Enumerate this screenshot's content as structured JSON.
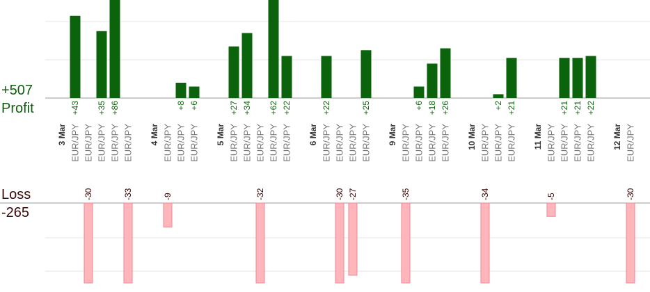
{
  "summary": {
    "profit_total": "+507",
    "profit_label": "Profit",
    "loss_label": "Loss",
    "loss_total": "-265"
  },
  "colors": {
    "profit_bar": "#0b640b",
    "profit_text": "#0b640b",
    "loss_bar": "#ffb6bb",
    "loss_border": "#e88a92",
    "loss_text": "#330000",
    "date_text": "#333333",
    "pair_text": "#777777"
  },
  "chart_data": {
    "type": "bar",
    "title": "",
    "xlabel": "",
    "ylabel": "",
    "grid": true,
    "columns": [
      {
        "label": "3 Mar",
        "kind": "date"
      },
      {
        "label": "EUR/JPY",
        "kind": "trade",
        "value": 43,
        "value_label": "+43"
      },
      {
        "label": "EUR/JPY",
        "kind": "trade",
        "value": -30,
        "value_label": "-30"
      },
      {
        "label": "EUR/JPY",
        "kind": "trade",
        "value": 35,
        "value_label": "+35"
      },
      {
        "label": "EUR/JPY",
        "kind": "trade",
        "value": 86,
        "value_label": "+86"
      },
      {
        "label": "EUR/JPY",
        "kind": "trade",
        "value": -33,
        "value_label": "-33"
      },
      {
        "label": "",
        "kind": "gap"
      },
      {
        "label": "4 Mar",
        "kind": "date"
      },
      {
        "label": "EUR/JPY",
        "kind": "trade",
        "value": -9,
        "value_label": "-9"
      },
      {
        "label": "EUR/JPY",
        "kind": "trade",
        "value": 8,
        "value_label": "+8"
      },
      {
        "label": "EUR/JPY",
        "kind": "trade",
        "value": 6,
        "value_label": "+6"
      },
      {
        "label": "",
        "kind": "gap"
      },
      {
        "label": "5 Mar",
        "kind": "date"
      },
      {
        "label": "EUR/JPY",
        "kind": "trade",
        "value": 27,
        "value_label": "+27"
      },
      {
        "label": "EUR/JPY",
        "kind": "trade",
        "value": 34,
        "value_label": "+34"
      },
      {
        "label": "EUR/JPY",
        "kind": "trade",
        "value": -32,
        "value_label": "-32"
      },
      {
        "label": "EUR/JPY",
        "kind": "trade",
        "value": 62,
        "value_label": "+62"
      },
      {
        "label": "EUR/JPY",
        "kind": "trade",
        "value": 22,
        "value_label": "+22"
      },
      {
        "label": "",
        "kind": "gap"
      },
      {
        "label": "6 Mar",
        "kind": "date"
      },
      {
        "label": "EUR/JPY",
        "kind": "trade",
        "value": 22,
        "value_label": "+22"
      },
      {
        "label": "EUR/JPY",
        "kind": "trade",
        "value": -30,
        "value_label": "-30"
      },
      {
        "label": "EUR/JPY",
        "kind": "trade",
        "value": -27,
        "value_label": "-27"
      },
      {
        "label": "EUR/JPY",
        "kind": "trade",
        "value": 25,
        "value_label": "+25"
      },
      {
        "label": "",
        "kind": "gap"
      },
      {
        "label": "9 Mar",
        "kind": "date"
      },
      {
        "label": "EUR/JPY",
        "kind": "trade",
        "value": -35,
        "value_label": "-35"
      },
      {
        "label": "EUR/JPY",
        "kind": "trade",
        "value": 6,
        "value_label": "+6"
      },
      {
        "label": "EUR/JPY",
        "kind": "trade",
        "value": 18,
        "value_label": "+18"
      },
      {
        "label": "EUR/JPY",
        "kind": "trade",
        "value": 26,
        "value_label": "+26"
      },
      {
        "label": "",
        "kind": "gap"
      },
      {
        "label": "10 Mar",
        "kind": "date"
      },
      {
        "label": "EUR/JPY",
        "kind": "trade",
        "value": -34,
        "value_label": "-34"
      },
      {
        "label": "EUR/JPY",
        "kind": "trade",
        "value": 2,
        "value_label": "+2"
      },
      {
        "label": "EUR/JPY",
        "kind": "trade",
        "value": 21,
        "value_label": "+21"
      },
      {
        "label": "",
        "kind": "gap"
      },
      {
        "label": "11 Mar",
        "kind": "date"
      },
      {
        "label": "EUR/JPY",
        "kind": "trade",
        "value": -5,
        "value_label": "-5"
      },
      {
        "label": "EUR/JPY",
        "kind": "trade",
        "value": 21,
        "value_label": "+21"
      },
      {
        "label": "EUR/JPY",
        "kind": "trade",
        "value": 21,
        "value_label": "+21"
      },
      {
        "label": "EUR/JPY",
        "kind": "trade",
        "value": 22,
        "value_label": "+22"
      },
      {
        "label": "",
        "kind": "gap"
      },
      {
        "label": "12 Mar",
        "kind": "date"
      },
      {
        "label": "EUR/JPY",
        "kind": "trade",
        "value": -30,
        "value_label": "-30"
      }
    ]
  }
}
